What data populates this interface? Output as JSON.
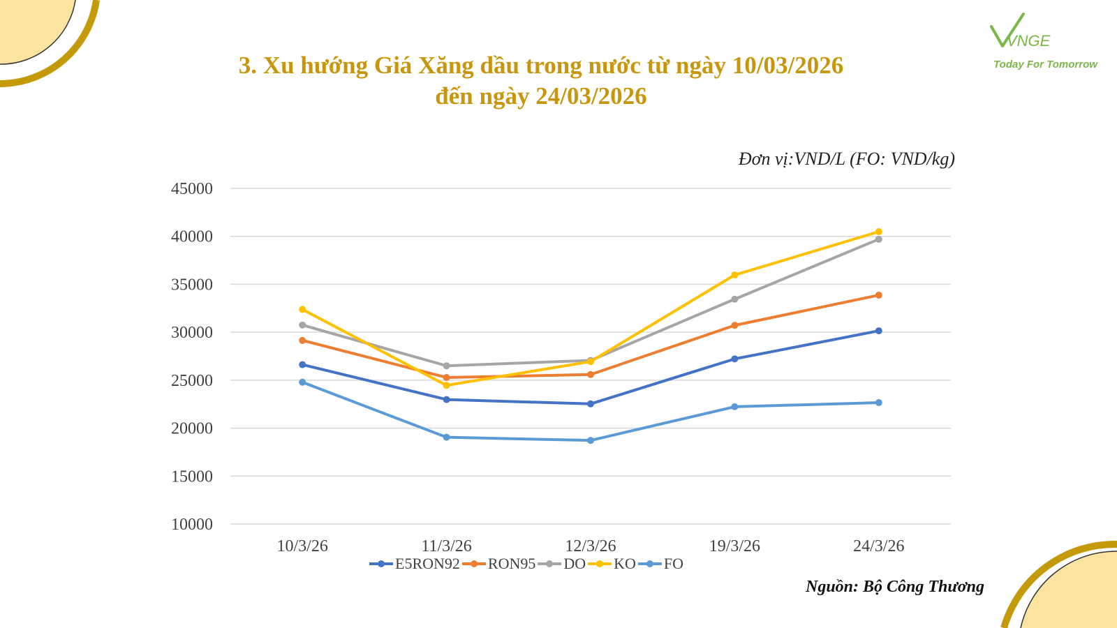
{
  "slide": {
    "title_line1": "3. Xu hướng Giá Xăng dầu trong nước từ ngày 10/03/2026",
    "title_line2": "đến ngày 24/03/2026",
    "unit_note": "Đơn vị:VND/L (FO: VND/kg)",
    "source": "Nguồn: Bộ Công Thương",
    "logo_text": "VNGE",
    "logo_tagline": "Today For Tomorrow",
    "colors": {
      "title": "#C8960C",
      "deco_gold": "#C49A0A",
      "deco_fill": "#FBE3A0",
      "logo_green": "#7AB648"
    }
  },
  "chart_data": {
    "type": "line",
    "categories": [
      "10/3/26",
      "11/3/26",
      "12/3/26",
      "19/3/26",
      "24/3/26"
    ],
    "ylim": [
      10000,
      45000
    ],
    "yticks": [
      10000,
      15000,
      20000,
      25000,
      30000,
      35000,
      40000,
      45000
    ],
    "grid": true,
    "legend_position": "bottom",
    "series": [
      {
        "name": "E5RON92",
        "color": "#4472C4",
        "values": [
          26620,
          22980,
          22530,
          27220,
          30150
        ]
      },
      {
        "name": "RON95",
        "color": "#ED7D31",
        "values": [
          29150,
          25280,
          25590,
          30720,
          33870
        ]
      },
      {
        "name": "DO",
        "color": "#A5A5A5",
        "values": [
          30750,
          26500,
          27060,
          33450,
          39700
        ]
      },
      {
        "name": "KO",
        "color": "#FFC000",
        "values": [
          32380,
          24460,
          26940,
          35970,
          40490
        ]
      },
      {
        "name": "FO",
        "color": "#5B9BD5",
        "values": [
          24790,
          19050,
          18720,
          22230,
          22660
        ]
      }
    ]
  }
}
